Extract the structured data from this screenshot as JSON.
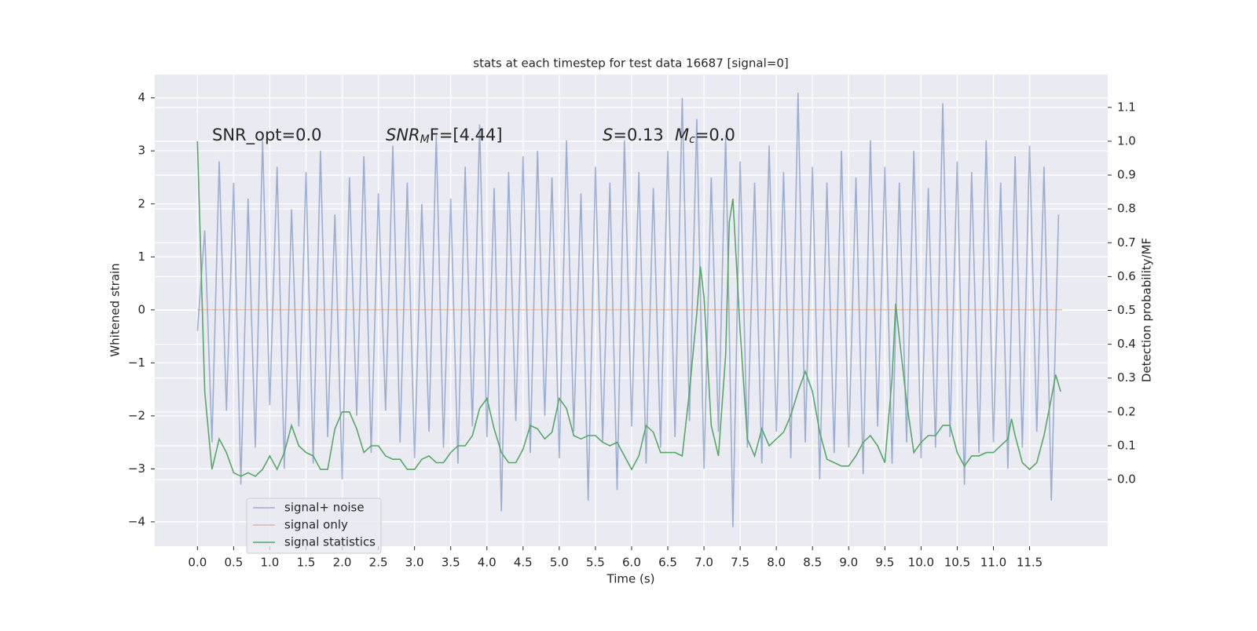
{
  "chart_data": {
    "type": "line",
    "title": "stats at each timestep for test data 16687 [signal=0]",
    "x_label": "Time (s)",
    "y_label": "Whitened strain",
    "y2_label": "Detection probability/MF",
    "annotations": {
      "snr_opt": "SNR_opt=0.0",
      "snr_mf": [
        "SNR",
        "M",
        "F=[4.44]"
      ],
      "s": [
        "S",
        "=0.13"
      ],
      "mc": [
        "M",
        "c",
        "=0.0"
      ]
    },
    "xlim": [
      -0.59,
      12.58
    ],
    "ylim": [
      -4.46,
      4.44
    ],
    "y2lim": [
      -0.197,
      1.197
    ],
    "grid": true,
    "legend": "lower left",
    "xticks": [
      {
        "value": 0,
        "label": "0.0"
      },
      {
        "value": 0.5,
        "label": "0.5"
      },
      {
        "value": 1,
        "label": "1.0"
      },
      {
        "value": 1.5,
        "label": "1.5"
      },
      {
        "value": 2,
        "label": "2.0"
      },
      {
        "value": 2.5,
        "label": "2.5"
      },
      {
        "value": 3,
        "label": "3.0"
      },
      {
        "value": 3.5,
        "label": "3.5"
      },
      {
        "value": 4,
        "label": "4.0"
      },
      {
        "value": 4.5,
        "label": "4.5"
      },
      {
        "value": 5,
        "label": "5.0"
      },
      {
        "value": 5.5,
        "label": "5.5"
      },
      {
        "value": 6,
        "label": "6.0"
      },
      {
        "value": 6.5,
        "label": "6.5"
      },
      {
        "value": 7,
        "label": "7.0"
      },
      {
        "value": 7.5,
        "label": "7.5"
      },
      {
        "value": 8,
        "label": "8.0"
      },
      {
        "value": 8.5,
        "label": "8.5"
      },
      {
        "value": 9,
        "label": "9.0"
      },
      {
        "value": 9.5,
        "label": "9.5"
      },
      {
        "value": 10,
        "label": "10.0"
      },
      {
        "value": 10.5,
        "label": "10.5"
      },
      {
        "value": 11,
        "label": "11.0"
      },
      {
        "value": 11.5,
        "label": "11.5"
      }
    ],
    "yticks": [
      {
        "value": -4,
        "label": "−4"
      },
      {
        "value": -3,
        "label": "−3"
      },
      {
        "value": -2,
        "label": "−2"
      },
      {
        "value": -1,
        "label": "−1"
      },
      0,
      1,
      2,
      3,
      4
    ],
    "y2ticks": [
      {
        "value": 0,
        "label": "0.0"
      },
      {
        "value": 0.1,
        "label": "0.1"
      },
      {
        "value": 0.2,
        "label": "0.2"
      },
      {
        "value": 0.3,
        "label": "0.3"
      },
      {
        "value": 0.4,
        "label": "0.4"
      },
      {
        "value": 0.5,
        "label": "0.5"
      },
      {
        "value": 0.6,
        "label": "0.6"
      },
      {
        "value": 0.7,
        "label": "0.7"
      },
      {
        "value": 0.8,
        "label": "0.8"
      },
      {
        "value": 0.9,
        "label": "0.9"
      },
      {
        "value": 1,
        "label": "1.0"
      },
      {
        "value": 1.1,
        "label": "1.1"
      }
    ],
    "series": [
      {
        "name": "signal+ noise",
        "color": "#4c72b0",
        "opacity": 0.5,
        "x": [
          0.0,
          0.1,
          0.2,
          0.3,
          0.4,
          0.5,
          0.6,
          0.7,
          0.8,
          0.9,
          1.0,
          1.1,
          1.2,
          1.3,
          1.4,
          1.5,
          1.6,
          1.7,
          1.8,
          1.9,
          2.0,
          2.1,
          2.2,
          2.3,
          2.4,
          2.5,
          2.6,
          2.7,
          2.8,
          2.9,
          3.0,
          3.1,
          3.2,
          3.3,
          3.4,
          3.5,
          3.6,
          3.7,
          3.8,
          3.9,
          4.0,
          4.1,
          4.2,
          4.3,
          4.4,
          4.5,
          4.6,
          4.7,
          4.8,
          4.9,
          5.0,
          5.1,
          5.2,
          5.3,
          5.4,
          5.5,
          5.6,
          5.7,
          5.8,
          5.9,
          6.0,
          6.1,
          6.2,
          6.3,
          6.4,
          6.5,
          6.6,
          6.7,
          6.8,
          6.9,
          7.0,
          7.1,
          7.2,
          7.3,
          7.4,
          7.5,
          7.6,
          7.7,
          7.8,
          7.9,
          8.0,
          8.1,
          8.2,
          8.3,
          8.4,
          8.5,
          8.6,
          8.7,
          8.8,
          8.9,
          9.0,
          9.1,
          9.2,
          9.3,
          9.4,
          9.5,
          9.6,
          9.7,
          9.8,
          9.9,
          10.0,
          10.1,
          10.2,
          10.3,
          10.4,
          10.5,
          10.6,
          10.7,
          10.8,
          10.9,
          11.0,
          11.1,
          11.2,
          11.3,
          11.4,
          11.5,
          11.6,
          11.7,
          11.8,
          11.9
        ],
        "values": [
          -0.4,
          1.5,
          -2.5,
          2.8,
          -1.9,
          2.4,
          -3.3,
          2.1,
          -2.6,
          3.2,
          -1.8,
          2.7,
          -3.0,
          1.9,
          -2.2,
          2.6,
          -2.9,
          3.0,
          -2.4,
          1.8,
          -3.2,
          2.5,
          -2.0,
          2.9,
          -2.7,
          2.2,
          -1.9,
          3.1,
          -2.5,
          2.4,
          -2.8,
          2.0,
          -2.3,
          3.3,
          -2.6,
          2.1,
          -2.9,
          2.7,
          -2.2,
          3.5,
          -2.4,
          2.3,
          -3.8,
          2.6,
          -2.1,
          2.9,
          -2.7,
          3.0,
          -2.0,
          2.5,
          -2.8,
          3.2,
          -2.3,
          2.2,
          -3.6,
          2.7,
          -2.5,
          2.4,
          -3.4,
          3.2,
          -2.2,
          2.6,
          -2.9,
          2.3,
          -2.6,
          3.0,
          -2.4,
          4.0,
          -2.1,
          3.6,
          -3.0,
          2.5,
          -2.3,
          3.3,
          -4.1,
          2.8,
          -2.6,
          2.4,
          -2.9,
          3.1,
          -2.3,
          2.6,
          -2.8,
          4.1,
          -2.5,
          2.7,
          -3.2,
          2.4,
          -2.7,
          3.0,
          -2.6,
          2.5,
          -3.1,
          3.2,
          -2.2,
          2.7,
          -2.9,
          2.4,
          -2.5,
          3.0,
          -2.8,
          2.3,
          -2.6,
          3.9,
          -2.4,
          2.8,
          -3.3,
          2.6,
          -2.7,
          3.2,
          -2.5,
          2.4,
          -3.0,
          2.9,
          -2.6,
          3.1,
          -2.3,
          2.7,
          -3.6,
          1.8
        ]
      },
      {
        "name": "signal only",
        "color": "#dd8452",
        "opacity": 0.5,
        "x": [
          0.0,
          11.95
        ],
        "values": [
          0,
          0
        ]
      },
      {
        "name": "signal statistics",
        "color": "#55a868",
        "opacity": 1,
        "axis": "y2",
        "x": [
          0.0,
          0.1,
          0.2,
          0.3,
          0.4,
          0.5,
          0.6,
          0.7,
          0.8,
          0.9,
          1.0,
          1.1,
          1.2,
          1.3,
          1.4,
          1.5,
          1.6,
          1.7,
          1.8,
          1.9,
          2.0,
          2.1,
          2.2,
          2.3,
          2.4,
          2.5,
          2.6,
          2.7,
          2.8,
          2.9,
          3.0,
          3.1,
          3.2,
          3.3,
          3.4,
          3.5,
          3.6,
          3.7,
          3.8,
          3.9,
          4.0,
          4.1,
          4.2,
          4.3,
          4.4,
          4.5,
          4.6,
          4.7,
          4.8,
          4.9,
          5.0,
          5.1,
          5.2,
          5.3,
          5.4,
          5.5,
          5.6,
          5.7,
          5.8,
          5.9,
          6.0,
          6.1,
          6.2,
          6.3,
          6.4,
          6.5,
          6.6,
          6.7,
          6.8,
          6.9,
          6.95,
          7.0,
          7.1,
          7.2,
          7.3,
          7.35,
          7.4,
          7.5,
          7.6,
          7.7,
          7.8,
          7.9,
          8.0,
          8.1,
          8.2,
          8.3,
          8.4,
          8.5,
          8.6,
          8.7,
          8.8,
          8.9,
          9.0,
          9.1,
          9.2,
          9.3,
          9.4,
          9.5,
          9.6,
          9.65,
          9.7,
          9.8,
          9.9,
          10.0,
          10.1,
          10.2,
          10.3,
          10.4,
          10.5,
          10.6,
          10.7,
          10.8,
          10.9,
          11.0,
          11.1,
          11.2,
          11.25,
          11.3,
          11.4,
          11.5,
          11.6,
          11.7,
          11.8,
          11.86,
          11.93
        ],
        "values": [
          1.0,
          0.26,
          0.03,
          0.12,
          0.08,
          0.02,
          0.01,
          0.02,
          0.01,
          0.03,
          0.07,
          0.03,
          0.08,
          0.16,
          0.1,
          0.08,
          0.07,
          0.03,
          0.03,
          0.15,
          0.2,
          0.2,
          0.15,
          0.08,
          0.1,
          0.1,
          0.07,
          0.06,
          0.06,
          0.03,
          0.03,
          0.06,
          0.07,
          0.05,
          0.05,
          0.08,
          0.1,
          0.1,
          0.13,
          0.21,
          0.24,
          0.15,
          0.08,
          0.05,
          0.05,
          0.09,
          0.16,
          0.15,
          0.12,
          0.14,
          0.24,
          0.21,
          0.13,
          0.12,
          0.13,
          0.13,
          0.11,
          0.1,
          0.11,
          0.07,
          0.03,
          0.07,
          0.16,
          0.14,
          0.08,
          0.08,
          0.08,
          0.07,
          0.26,
          0.49,
          0.63,
          0.54,
          0.16,
          0.07,
          0.37,
          0.76,
          0.83,
          0.44,
          0.12,
          0.07,
          0.15,
          0.1,
          0.12,
          0.14,
          0.19,
          0.26,
          0.32,
          0.26,
          0.14,
          0.06,
          0.05,
          0.04,
          0.04,
          0.07,
          0.11,
          0.13,
          0.1,
          0.05,
          0.3,
          0.52,
          0.42,
          0.23,
          0.08,
          0.11,
          0.13,
          0.13,
          0.16,
          0.16,
          0.08,
          0.04,
          0.07,
          0.07,
          0.08,
          0.08,
          0.1,
          0.12,
          0.18,
          0.13,
          0.05,
          0.03,
          0.05,
          0.13,
          0.24,
          0.31,
          0.26
        ]
      }
    ]
  }
}
